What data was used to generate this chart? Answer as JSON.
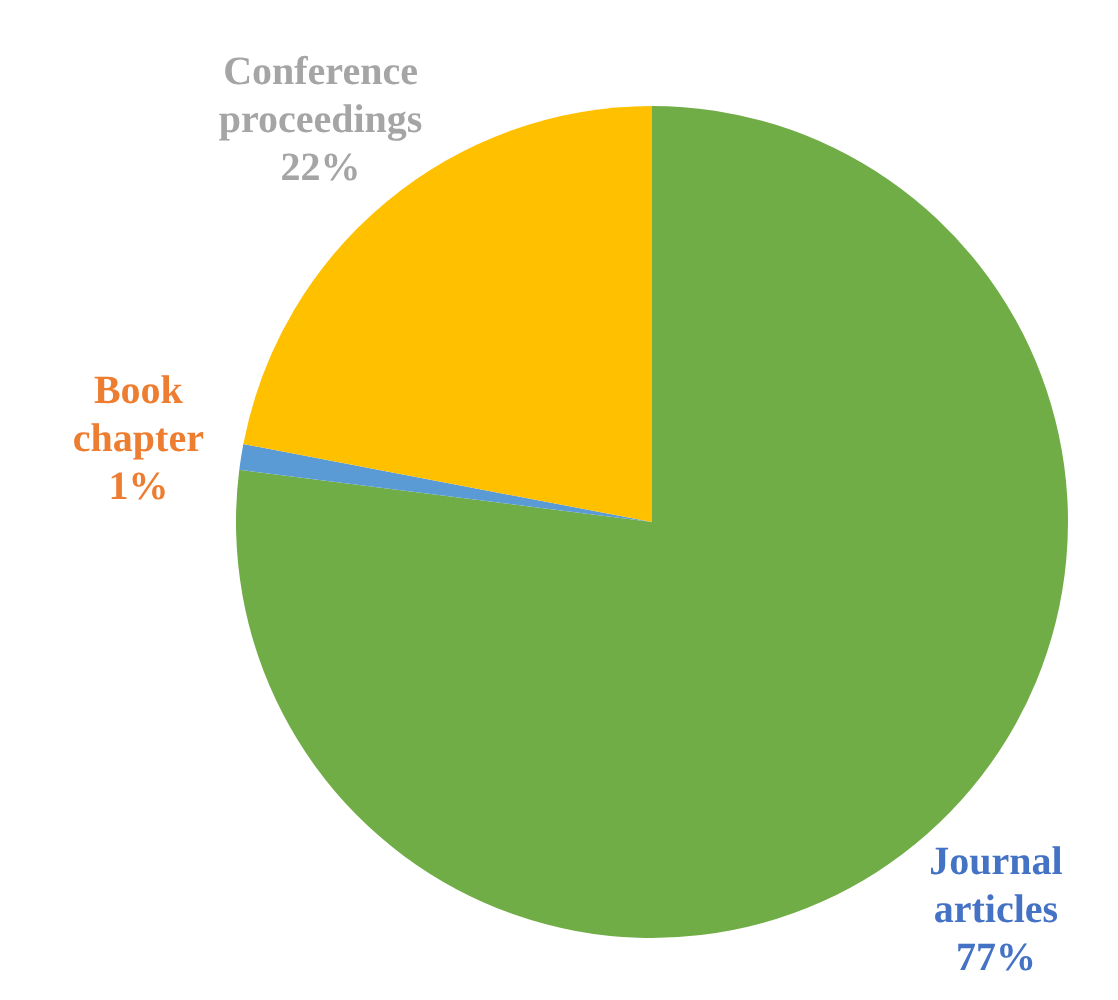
{
  "chart_data": {
    "type": "pie",
    "categories": [
      "Journal articles",
      "Book chapter",
      "Conference proceedings"
    ],
    "values": [
      77,
      1,
      22
    ],
    "colors": [
      "#70ad47",
      "#5b9bd5",
      "#ffc000"
    ],
    "value_labels": [
      "77%",
      "1%",
      "22%"
    ],
    "legend": false
  }
}
